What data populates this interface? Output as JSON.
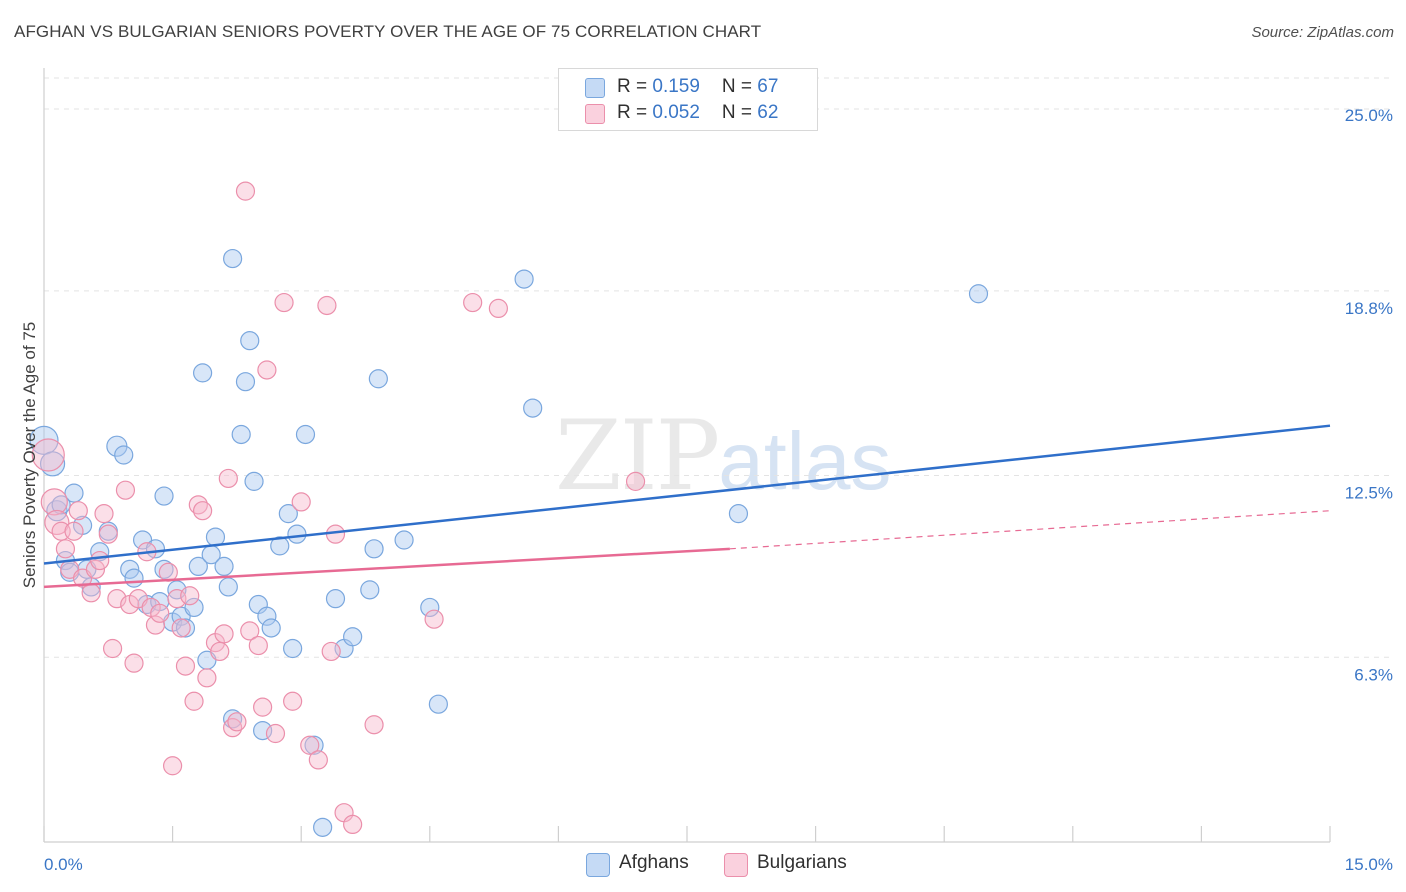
{
  "header": {
    "title": "AFGHAN VS BULGARIAN SENIORS POVERTY OVER THE AGE OF 75 CORRELATION CHART",
    "source": "Source: ZipAtlas.com"
  },
  "watermark": {
    "zip": "ZIP",
    "atlas": "atlas"
  },
  "legend": {
    "rows": [
      {
        "r_label": "R = ",
        "r_value": "0.159",
        "n_label": "N = ",
        "n_value": "67"
      },
      {
        "r_label": "R = ",
        "r_value": "0.052",
        "n_label": "N = ",
        "n_value": "62"
      }
    ],
    "bottom": [
      "Afghans",
      "Bulgarians"
    ]
  },
  "colors": {
    "afghans_fill": "#a9c8f0",
    "afghans_stroke": "#7aa7de",
    "afghans_line": "#2f6fca",
    "bulgarians_fill": "#f6b8cb",
    "bulgarians_stroke": "#eb8fab",
    "bulgarians_line": "#e76a93",
    "tick_text": "#3a76c6",
    "grid": "#e3e3e3"
  },
  "chart_data": {
    "type": "scatter",
    "title": "AFGHAN VS BULGARIAN SENIORS POVERTY OVER THE AGE OF 75 CORRELATION CHART",
    "xlabel": "",
    "ylabel": "Seniors Poverty Over the Age of 75",
    "xlim": [
      0,
      15
    ],
    "ylim": [
      0,
      26.4
    ],
    "x_tick_labels": [
      "0.0%",
      "15.0%"
    ],
    "y_ticks": [
      6.3,
      12.5,
      18.8,
      25.0
    ],
    "y_tick_labels": [
      "6.3%",
      "12.5%",
      "18.8%",
      "25.0%"
    ],
    "grid": true,
    "legend_position": "top-center",
    "series": [
      {
        "name": "Afghans",
        "r": 0.159,
        "n": 67,
        "trend": {
          "x": [
            0,
            15
          ],
          "y": [
            9.5,
            14.2
          ],
          "style": "solid"
        },
        "points": [
          [
            0.0,
            13.7,
            14
          ],
          [
            0.1,
            12.9,
            12
          ],
          [
            0.15,
            11.3,
            10
          ],
          [
            0.2,
            11.5,
            9
          ],
          [
            0.25,
            9.6,
            9
          ],
          [
            0.3,
            9.2,
            9
          ],
          [
            0.35,
            11.9,
            9
          ],
          [
            0.45,
            10.8,
            9
          ],
          [
            0.5,
            9.3,
            9
          ],
          [
            0.55,
            8.7,
            9
          ],
          [
            0.65,
            9.9,
            9
          ],
          [
            0.75,
            10.6,
            9
          ],
          [
            0.85,
            13.5,
            10
          ],
          [
            0.93,
            13.2,
            9
          ],
          [
            1.0,
            9.3,
            9
          ],
          [
            1.05,
            9.0,
            9
          ],
          [
            1.2,
            8.1,
            9
          ],
          [
            1.15,
            10.3,
            9
          ],
          [
            1.3,
            10.0,
            9
          ],
          [
            1.35,
            8.2,
            9
          ],
          [
            1.4,
            9.3,
            9
          ],
          [
            1.4,
            11.8,
            9
          ],
          [
            1.5,
            7.5,
            9
          ],
          [
            1.55,
            8.6,
            9
          ],
          [
            1.6,
            7.7,
            9
          ],
          [
            1.65,
            7.3,
            9
          ],
          [
            1.75,
            8.0,
            9
          ],
          [
            1.8,
            9.4,
            9
          ],
          [
            1.85,
            16.0,
            9
          ],
          [
            1.9,
            6.2,
            9
          ],
          [
            1.95,
            9.8,
            9
          ],
          [
            2.0,
            10.4,
            9
          ],
          [
            2.1,
            9.4,
            9
          ],
          [
            2.15,
            8.7,
            9
          ],
          [
            2.2,
            4.2,
            9
          ],
          [
            2.2,
            19.9,
            9
          ],
          [
            2.3,
            13.9,
            9
          ],
          [
            2.35,
            15.7,
            9
          ],
          [
            2.4,
            17.1,
            9
          ],
          [
            2.45,
            12.3,
            9
          ],
          [
            2.5,
            8.1,
            9
          ],
          [
            2.55,
            3.8,
            9
          ],
          [
            2.6,
            7.7,
            9
          ],
          [
            2.65,
            7.3,
            9
          ],
          [
            2.75,
            10.1,
            9
          ],
          [
            2.85,
            11.2,
            9
          ],
          [
            2.9,
            6.6,
            9
          ],
          [
            2.95,
            10.5,
            9
          ],
          [
            3.05,
            13.9,
            9
          ],
          [
            3.15,
            3.3,
            9
          ],
          [
            3.25,
            0.5,
            9
          ],
          [
            3.4,
            8.3,
            9
          ],
          [
            3.5,
            6.6,
            9
          ],
          [
            3.6,
            7.0,
            9
          ],
          [
            3.8,
            8.6,
            9
          ],
          [
            3.85,
            10.0,
            9
          ],
          [
            3.9,
            15.8,
            9
          ],
          [
            4.2,
            10.3,
            9
          ],
          [
            4.5,
            8.0,
            9
          ],
          [
            4.6,
            4.7,
            9
          ],
          [
            5.6,
            19.2,
            9
          ],
          [
            5.7,
            14.8,
            9
          ],
          [
            8.1,
            11.2,
            9
          ],
          [
            10.9,
            18.7,
            9
          ]
        ]
      },
      {
        "name": "Bulgarians",
        "r": 0.052,
        "n": 62,
        "trend": {
          "x": [
            0,
            8.0
          ],
          "y": [
            8.7,
            10.0
          ],
          "style": "solid",
          "extension": {
            "x": [
              8.0,
              15
            ],
            "y": [
              10.0,
              11.3
            ],
            "style": "dashed"
          }
        },
        "points": [
          [
            0.05,
            13.2,
            16
          ],
          [
            0.12,
            11.6,
            13
          ],
          [
            0.15,
            10.9,
            12
          ],
          [
            0.2,
            10.6,
            9
          ],
          [
            0.25,
            10.0,
            9
          ],
          [
            0.3,
            9.3,
            9
          ],
          [
            0.35,
            10.6,
            9
          ],
          [
            0.4,
            11.3,
            9
          ],
          [
            0.45,
            9.0,
            9
          ],
          [
            0.55,
            8.5,
            9
          ],
          [
            0.6,
            9.3,
            9
          ],
          [
            0.65,
            9.6,
            9
          ],
          [
            0.7,
            11.2,
            9
          ],
          [
            0.75,
            10.5,
            9
          ],
          [
            0.8,
            6.6,
            9
          ],
          [
            0.85,
            8.3,
            9
          ],
          [
            0.95,
            12.0,
            9
          ],
          [
            1.0,
            8.1,
            9
          ],
          [
            1.05,
            6.1,
            9
          ],
          [
            1.1,
            8.3,
            9
          ],
          [
            1.2,
            9.9,
            9
          ],
          [
            1.25,
            8.0,
            9
          ],
          [
            1.3,
            7.4,
            9
          ],
          [
            1.35,
            7.8,
            9
          ],
          [
            1.45,
            9.2,
            9
          ],
          [
            1.5,
            2.6,
            9
          ],
          [
            1.55,
            8.3,
            9
          ],
          [
            1.6,
            7.3,
            9
          ],
          [
            1.65,
            6.0,
            9
          ],
          [
            1.7,
            8.4,
            9
          ],
          [
            1.75,
            4.8,
            9
          ],
          [
            1.8,
            11.5,
            9
          ],
          [
            1.85,
            11.3,
            9
          ],
          [
            1.9,
            5.6,
            9
          ],
          [
            2.0,
            6.8,
            9
          ],
          [
            2.05,
            6.5,
            9
          ],
          [
            2.1,
            7.1,
            9
          ],
          [
            2.15,
            12.4,
            9
          ],
          [
            2.2,
            3.9,
            9
          ],
          [
            2.25,
            4.1,
            9
          ],
          [
            2.35,
            22.2,
            9
          ],
          [
            2.4,
            7.2,
            9
          ],
          [
            2.5,
            6.7,
            9
          ],
          [
            2.55,
            4.6,
            9
          ],
          [
            2.6,
            16.1,
            9
          ],
          [
            2.7,
            3.7,
            9
          ],
          [
            2.8,
            18.4,
            9
          ],
          [
            2.9,
            4.8,
            9
          ],
          [
            3.0,
            11.6,
            9
          ],
          [
            3.1,
            3.3,
            9
          ],
          [
            3.2,
            2.8,
            9
          ],
          [
            3.3,
            18.3,
            9
          ],
          [
            3.35,
            6.5,
            9
          ],
          [
            3.4,
            10.5,
            9
          ],
          [
            3.5,
            1.0,
            9
          ],
          [
            3.6,
            0.6,
            9
          ],
          [
            3.85,
            4.0,
            9
          ],
          [
            4.55,
            7.6,
            9
          ],
          [
            5.0,
            18.4,
            9
          ],
          [
            5.3,
            18.2,
            9
          ],
          [
            6.9,
            12.3,
            9
          ]
        ]
      }
    ]
  }
}
